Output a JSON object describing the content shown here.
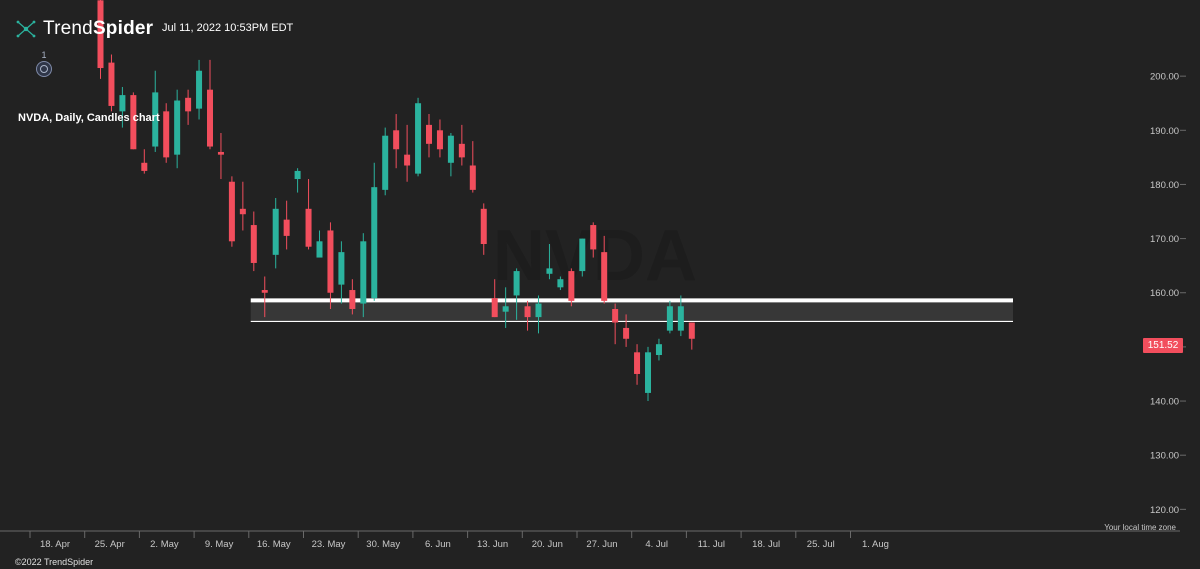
{
  "header": {
    "logo_regular": "Trend",
    "logo_bold": "Spider",
    "datetime": "Jul 11, 2022 10:53PM EDT",
    "indicator_count": "1"
  },
  "chart_title": "NVDA, Daily, Candles chart",
  "watermark": "NVDA",
  "time_zone_label": "Your local time zone",
  "footer": "©2022 TrendSpider",
  "colors": {
    "background": "#222222",
    "up": "#2bb39e",
    "down": "#f24e5d",
    "zone_border": "#ffffff",
    "zone_fill": "#3b3b3b",
    "price_tag": "#f24e5d"
  },
  "chart_data": {
    "type": "candlestick",
    "title": "NVDA, Daily, Candles chart",
    "ylim": [
      116,
      210
    ],
    "y_ticks": [
      120,
      130,
      140,
      150,
      160,
      170,
      180,
      190,
      200
    ],
    "y_tick_labels": [
      "120.00",
      "130.00",
      "140.00",
      "150.00",
      "160.00",
      "170.00",
      "180.00",
      "190.00",
      "200.00"
    ],
    "x_labels": [
      "18. Apr",
      "25. Apr",
      "2. May",
      "9. May",
      "16. May",
      "23. May",
      "30. May",
      "6. Jun",
      "13. Jun",
      "20. Jun",
      "27. Jun",
      "4. Jul",
      "11. Jul",
      "18. Jul",
      "25. Jul",
      "1. Aug"
    ],
    "last_price": "151.52",
    "grid": false,
    "candles": [
      {
        "date": "Apr 21",
        "open": 214.0,
        "high": 219.0,
        "low": 199.5,
        "close": 201.5
      },
      {
        "date": "Apr 22",
        "open": 202.5,
        "high": 204.0,
        "low": 193.5,
        "close": 194.5
      },
      {
        "date": "Apr 25",
        "open": 193.5,
        "high": 198.0,
        "low": 190.5,
        "close": 196.5
      },
      {
        "date": "Apr 26",
        "open": 196.5,
        "high": 197.0,
        "low": 186.5,
        "close": 186.5
      },
      {
        "date": "Apr 27",
        "open": 184.0,
        "high": 186.5,
        "low": 182.0,
        "close": 182.5
      },
      {
        "date": "Apr 28",
        "open": 187.0,
        "high": 201.0,
        "low": 186.0,
        "close": 197.0
      },
      {
        "date": "Apr 29",
        "open": 193.5,
        "high": 195.0,
        "low": 184.0,
        "close": 185.0
      },
      {
        "date": "May 2",
        "open": 185.5,
        "high": 197.5,
        "low": 183.0,
        "close": 195.5
      },
      {
        "date": "May 3",
        "open": 196.0,
        "high": 197.5,
        "low": 191.0,
        "close": 193.5
      },
      {
        "date": "May 4",
        "open": 194.0,
        "high": 203.0,
        "low": 192.0,
        "close": 201.0
      },
      {
        "date": "May 5",
        "open": 197.5,
        "high": 203.0,
        "low": 186.5,
        "close": 187.0
      },
      {
        "date": "May 6",
        "open": 186.0,
        "high": 189.5,
        "low": 181.0,
        "close": 185.5
      },
      {
        "date": "May 9",
        "open": 180.5,
        "high": 181.5,
        "low": 168.5,
        "close": 169.5
      },
      {
        "date": "May 10",
        "open": 175.5,
        "high": 180.5,
        "low": 171.5,
        "close": 174.5
      },
      {
        "date": "May 11",
        "open": 172.5,
        "high": 175.0,
        "low": 164.0,
        "close": 165.5
      },
      {
        "date": "May 12",
        "open": 160.5,
        "high": 163.0,
        "low": 155.5,
        "close": 160.0
      },
      {
        "date": "May 13",
        "open": 167.0,
        "high": 177.5,
        "low": 164.5,
        "close": 175.5
      },
      {
        "date": "May 16",
        "open": 173.5,
        "high": 177.0,
        "low": 168.0,
        "close": 170.5
      },
      {
        "date": "May 17",
        "open": 181.0,
        "high": 183.0,
        "low": 178.5,
        "close": 182.5
      },
      {
        "date": "May 18",
        "open": 175.5,
        "high": 181.0,
        "low": 168.0,
        "close": 168.5
      },
      {
        "date": "May 19",
        "open": 166.5,
        "high": 171.5,
        "low": 166.5,
        "close": 169.5
      },
      {
        "date": "May 20",
        "open": 171.5,
        "high": 173.0,
        "low": 157.0,
        "close": 160.0
      },
      {
        "date": "May 23",
        "open": 161.5,
        "high": 169.5,
        "low": 158.0,
        "close": 167.5
      },
      {
        "date": "May 24",
        "open": 160.5,
        "high": 162.5,
        "low": 156.0,
        "close": 157.0
      },
      {
        "date": "May 25",
        "open": 158.0,
        "high": 171.0,
        "low": 155.5,
        "close": 169.5
      },
      {
        "date": "May 26",
        "open": 159.0,
        "high": 184.0,
        "low": 158.5,
        "close": 179.5
      },
      {
        "date": "May 27",
        "open": 179.0,
        "high": 190.5,
        "low": 178.0,
        "close": 189.0
      },
      {
        "date": "May 31",
        "open": 190.0,
        "high": 193.0,
        "low": 183.0,
        "close": 186.5
      },
      {
        "date": "Jun 1",
        "open": 185.5,
        "high": 191.0,
        "low": 180.5,
        "close": 183.5
      },
      {
        "date": "Jun 2",
        "open": 182.0,
        "high": 196.0,
        "low": 181.5,
        "close": 195.0
      },
      {
        "date": "Jun 3",
        "open": 191.0,
        "high": 193.0,
        "low": 185.0,
        "close": 187.5
      },
      {
        "date": "Jun 6",
        "open": 190.0,
        "high": 192.0,
        "low": 185.0,
        "close": 186.5
      },
      {
        "date": "Jun 7",
        "open": 184.0,
        "high": 189.5,
        "low": 181.5,
        "close": 189.0
      },
      {
        "date": "Jun 8",
        "open": 187.5,
        "high": 191.0,
        "low": 183.5,
        "close": 185.0
      },
      {
        "date": "Jun 9",
        "open": 183.5,
        "high": 188.0,
        "low": 178.5,
        "close": 179.0
      },
      {
        "date": "Jun 10",
        "open": 175.5,
        "high": 176.5,
        "low": 167.0,
        "close": 169.0
      },
      {
        "date": "Jun 13",
        "open": 159.0,
        "high": 162.5,
        "low": 155.5,
        "close": 155.5
      },
      {
        "date": "Jun 14",
        "open": 156.5,
        "high": 161.0,
        "low": 153.5,
        "close": 157.5
      },
      {
        "date": "Jun 15",
        "open": 159.5,
        "high": 164.5,
        "low": 155.0,
        "close": 164.0
      },
      {
        "date": "Jun 16",
        "open": 157.5,
        "high": 158.5,
        "low": 153.0,
        "close": 155.5
      },
      {
        "date": "Jun 17",
        "open": 155.5,
        "high": 159.5,
        "low": 152.5,
        "close": 158.0
      },
      {
        "date": "Jun 21",
        "open": 163.5,
        "high": 169.0,
        "low": 162.5,
        "close": 164.5
      },
      {
        "date": "Jun 22",
        "open": 161.0,
        "high": 163.0,
        "low": 160.5,
        "close": 162.5
      },
      {
        "date": "Jun 23",
        "open": 164.0,
        "high": 164.5,
        "low": 157.5,
        "close": 158.5
      },
      {
        "date": "Jun 24",
        "open": 164.0,
        "high": 170.0,
        "low": 163.0,
        "close": 170.0
      },
      {
        "date": "Jun 27",
        "open": 172.5,
        "high": 173.0,
        "low": 166.5,
        "close": 168.0
      },
      {
        "date": "Jun 28",
        "open": 167.5,
        "high": 170.5,
        "low": 158.0,
        "close": 158.5
      },
      {
        "date": "Jun 29",
        "open": 157.0,
        "high": 158.0,
        "low": 150.5,
        "close": 154.5
      },
      {
        "date": "Jun 30",
        "open": 153.5,
        "high": 156.0,
        "low": 150.0,
        "close": 151.5
      },
      {
        "date": "Jul 1",
        "open": 149.0,
        "high": 150.5,
        "low": 143.0,
        "close": 145.0
      },
      {
        "date": "Jul 5",
        "open": 141.5,
        "high": 150.0,
        "low": 140.0,
        "close": 149.0
      },
      {
        "date": "Jul 6",
        "open": 148.5,
        "high": 151.5,
        "low": 147.5,
        "close": 150.5
      },
      {
        "date": "Jul 7",
        "open": 153.0,
        "high": 158.5,
        "low": 152.5,
        "close": 157.5
      },
      {
        "date": "Jul 8",
        "open": 153.0,
        "high": 159.5,
        "low": 152.0,
        "close": 157.5
      },
      {
        "date": "Jul 11",
        "open": 154.5,
        "high": 154.5,
        "low": 149.5,
        "close": 151.5
      }
    ],
    "zone": {
      "upper": 158.6,
      "lower": 154.7,
      "from_date": "May 12",
      "to_date": "Jul 14"
    }
  }
}
